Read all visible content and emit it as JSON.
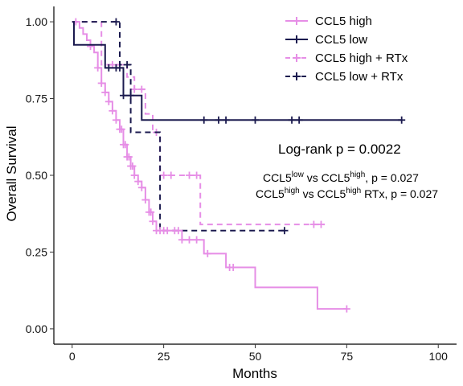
{
  "chart_data": {
    "type": "line",
    "subtype": "kaplan-meier survival",
    "title": "",
    "xlabel": "Months",
    "ylabel": "Overall Survival",
    "xlim": [
      -5,
      105
    ],
    "ylim": [
      -0.05,
      1.05
    ],
    "xticks": [
      0,
      25,
      50,
      75,
      100
    ],
    "yticks": [
      0.0,
      0.25,
      0.5,
      0.75,
      1.0
    ],
    "x_tick_labels": [
      "0",
      "25",
      "50",
      "75",
      "100"
    ],
    "y_tick_labels": [
      "0.00",
      "0.25",
      "0.50",
      "0.75",
      "1.00"
    ],
    "grid": false,
    "legend_position": "top-right",
    "series": [
      {
        "name": "CCL5 high",
        "color": "#e68ee6",
        "dash": "solid",
        "steps": [
          [
            0,
            1.0
          ],
          [
            2,
            0.98
          ],
          [
            3,
            0.96
          ],
          [
            4,
            0.94
          ],
          [
            5,
            0.92
          ],
          [
            6,
            0.9
          ],
          [
            7,
            0.85
          ],
          [
            8,
            0.8
          ],
          [
            9,
            0.77
          ],
          [
            10,
            0.74
          ],
          [
            11,
            0.71
          ],
          [
            12,
            0.68
          ],
          [
            13,
            0.65
          ],
          [
            14,
            0.6
          ],
          [
            15,
            0.56
          ],
          [
            16,
            0.53
          ],
          [
            17,
            0.5
          ],
          [
            18,
            0.48
          ],
          [
            19,
            0.46
          ],
          [
            20,
            0.42
          ],
          [
            21,
            0.38
          ],
          [
            22,
            0.35
          ],
          [
            23,
            0.32
          ],
          [
            30,
            0.29
          ],
          [
            35,
            0.29
          ],
          [
            36,
            0.245
          ],
          [
            41,
            0.245
          ],
          [
            42,
            0.2
          ],
          [
            50,
            0.135
          ],
          [
            67,
            0.065
          ],
          [
            75,
            0.065
          ]
        ],
        "censor": [
          1,
          5,
          7,
          8,
          9,
          10,
          11,
          12,
          13,
          13.5,
          14,
          14.5,
          15,
          15.5,
          16,
          16.5,
          17,
          18,
          19,
          20,
          21,
          21.5,
          22,
          23,
          24,
          25,
          26,
          28,
          29,
          30,
          32,
          34,
          37,
          43,
          44,
          75
        ]
      },
      {
        "name": "CCL5 low",
        "color": "#1b1a4f",
        "dash": "solid",
        "steps": [
          [
            0,
            1.0
          ],
          [
            0.5,
            0.925
          ],
          [
            9,
            0.85
          ],
          [
            14,
            0.76
          ],
          [
            19,
            0.68
          ],
          [
            90,
            0.68
          ]
        ],
        "censor": [
          10,
          12,
          13,
          14,
          16,
          36,
          40,
          42,
          50,
          60,
          62,
          90
        ]
      },
      {
        "name": "CCL5 high + RTx",
        "color": "#e68ee6",
        "dash": "dashed",
        "steps": [
          [
            0,
            1.0
          ],
          [
            8,
            0.86
          ],
          [
            15,
            0.82
          ],
          [
            17,
            0.78
          ],
          [
            20,
            0.7
          ],
          [
            22,
            0.64
          ],
          [
            24,
            0.5
          ],
          [
            35,
            0.34
          ],
          [
            69,
            0.34
          ]
        ],
        "censor": [
          11,
          13,
          17,
          19,
          23,
          25,
          27,
          32,
          34,
          66,
          68
        ]
      },
      {
        "name": "CCL5 low + RTx",
        "color": "#1b1a4f",
        "dash": "dashed",
        "steps": [
          [
            0,
            1.0
          ],
          [
            13,
            0.86
          ],
          [
            16,
            0.64
          ],
          [
            24,
            0.32
          ],
          [
            59,
            0.32
          ]
        ],
        "censor": [
          12,
          15,
          58
        ]
      }
    ],
    "annotations": {
      "logrank": "Log-rank p = 0.0022",
      "comparisons": [
        {
          "base": "CCL5",
          "sup": "low",
          "middle": " vs CCL5",
          "sup2": "high",
          "tail": ", p = 0.027"
        },
        {
          "base": "CCL5",
          "sup": "high",
          "middle": " vs CCL5",
          "sup2": "high",
          "tail": " RTx, p =  0.027"
        }
      ]
    }
  }
}
